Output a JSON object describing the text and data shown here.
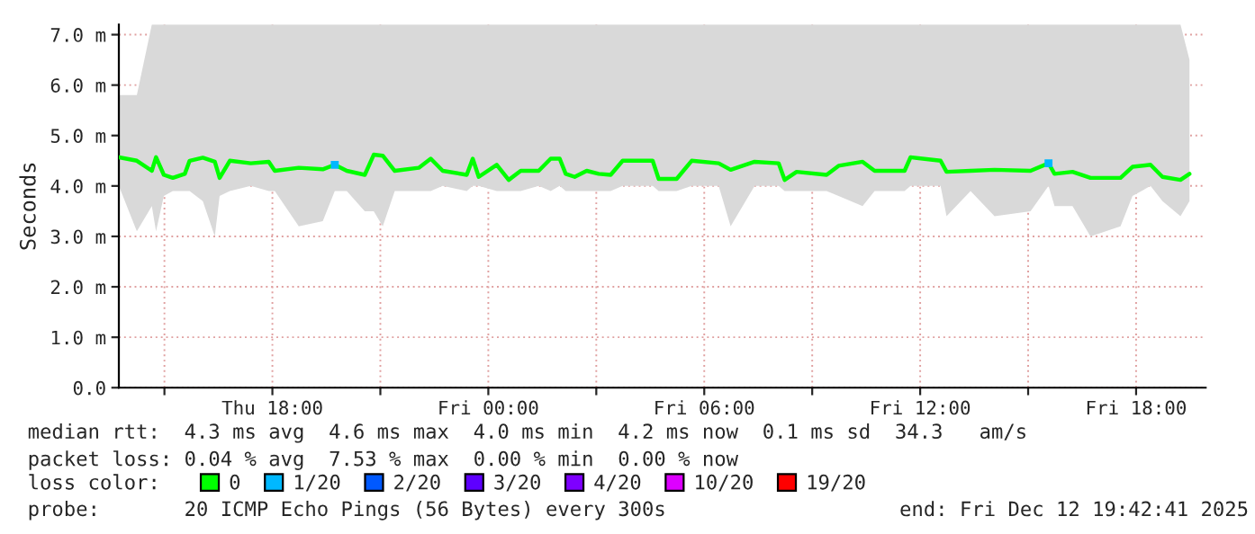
{
  "chart_data": {
    "type": "line",
    "ylabel": "Seconds",
    "legend_title": "loss color:",
    "x": [
      "2025-12-11T13:44",
      "2025-12-11T14:14",
      "2025-12-11T14:39",
      "2025-12-11T14:46",
      "2025-12-11T14:59",
      "2025-12-11T15:14",
      "2025-12-11T15:34",
      "2025-12-11T15:42",
      "2025-12-11T16:04",
      "2025-12-11T16:24",
      "2025-12-11T16:32",
      "2025-12-11T16:49",
      "2025-12-11T17:24",
      "2025-12-11T17:54",
      "2025-12-11T18:04",
      "2025-12-11T18:44",
      "2025-12-11T19:24",
      "2025-12-11T19:44",
      "2025-12-11T20:04",
      "2025-12-11T20:34",
      "2025-12-11T20:49",
      "2025-12-11T21:04",
      "2025-12-11T21:24",
      "2025-12-11T22:04",
      "2025-12-11T22:24",
      "2025-12-11T22:44",
      "2025-12-11T23:24",
      "2025-12-11T23:34",
      "2025-12-11T23:44",
      "2025-12-12T00:14",
      "2025-12-12T00:34",
      "2025-12-12T00:54",
      "2025-12-12T01:24",
      "2025-12-12T01:44",
      "2025-12-12T01:59",
      "2025-12-12T02:09",
      "2025-12-12T02:24",
      "2025-12-12T02:44",
      "2025-12-12T03:04",
      "2025-12-12T03:24",
      "2025-12-12T03:44",
      "2025-12-12T04:34",
      "2025-12-12T04:44",
      "2025-12-12T05:14",
      "2025-12-12T05:39",
      "2025-12-12T06:24",
      "2025-12-12T06:44",
      "2025-12-12T07:24",
      "2025-12-12T08:04",
      "2025-12-12T08:14",
      "2025-12-12T08:34",
      "2025-12-12T09:24",
      "2025-12-12T09:44",
      "2025-12-12T10:24",
      "2025-12-12T10:44",
      "2025-12-12T11:34",
      "2025-12-12T11:44",
      "2025-12-12T12:34",
      "2025-12-12T12:44",
      "2025-12-12T13:24",
      "2025-12-12T14:04",
      "2025-12-12T15:04",
      "2025-12-12T15:34",
      "2025-12-12T15:44",
      "2025-12-12T16:14",
      "2025-12-12T16:44",
      "2025-12-12T17:34",
      "2025-12-12T17:54",
      "2025-12-12T18:24",
      "2025-12-12T18:44",
      "2025-12-12T19:14",
      "2025-12-12T19:29"
    ],
    "series": [
      {
        "name": "0",
        "color": "#00ff00",
        "values": [
          4.57,
          4.5,
          4.3,
          4.57,
          4.22,
          4.16,
          4.24,
          4.5,
          4.56,
          4.48,
          4.16,
          4.5,
          4.45,
          4.48,
          4.3,
          4.36,
          4.33,
          4.42,
          4.3,
          4.22,
          4.62,
          4.6,
          4.3,
          4.36,
          4.54,
          4.3,
          4.22,
          4.54,
          4.18,
          4.42,
          4.12,
          4.3,
          4.3,
          4.54,
          4.54,
          4.24,
          4.18,
          4.3,
          4.24,
          4.22,
          4.5,
          4.5,
          4.14,
          4.14,
          4.5,
          4.45,
          4.32,
          4.48,
          4.45,
          4.12,
          4.28,
          4.22,
          4.4,
          4.48,
          4.3,
          4.3,
          4.57,
          4.5,
          4.28,
          4.3,
          4.32,
          4.3,
          4.45,
          4.24,
          4.28,
          4.16,
          4.16,
          4.38,
          4.42,
          4.18,
          4.12,
          4.24
        ],
        "lower": [
          4.0,
          3.1,
          3.6,
          3.1,
          3.8,
          3.9,
          3.9,
          3.9,
          3.7,
          3.0,
          3.8,
          3.9,
          4.0,
          3.9,
          3.9,
          3.2,
          3.3,
          3.9,
          3.9,
          3.5,
          3.5,
          3.2,
          3.9,
          3.9,
          3.9,
          4.0,
          3.9,
          4.0,
          4.0,
          3.9,
          3.9,
          3.9,
          4.0,
          3.9,
          4.0,
          3.9,
          3.9,
          3.9,
          3.9,
          3.9,
          4.0,
          4.0,
          3.9,
          3.9,
          4.0,
          4.0,
          3.2,
          4.0,
          4.0,
          3.9,
          3.9,
          3.9,
          3.8,
          3.6,
          3.9,
          3.9,
          4.0,
          4.0,
          3.4,
          3.9,
          3.4,
          3.5,
          4.0,
          3.6,
          3.6,
          3.0,
          3.2,
          3.8,
          4.0,
          3.7,
          3.4,
          3.7
        ],
        "upper": [
          5.8,
          5.8,
          7.2,
          7.2,
          7.2,
          7.2,
          7.2,
          7.2,
          7.2,
          7.2,
          7.2,
          7.2,
          7.2,
          7.2,
          7.2,
          7.2,
          7.2,
          7.2,
          7.2,
          7.2,
          7.2,
          7.2,
          7.2,
          7.2,
          7.2,
          7.2,
          7.2,
          7.2,
          7.2,
          7.2,
          7.2,
          7.2,
          7.2,
          7.2,
          7.2,
          7.2,
          7.2,
          7.2,
          7.2,
          7.2,
          7.2,
          7.2,
          7.2,
          7.2,
          7.2,
          7.2,
          7.2,
          7.2,
          7.2,
          7.2,
          7.2,
          7.2,
          7.2,
          7.2,
          7.2,
          7.2,
          7.2,
          7.2,
          7.2,
          7.2,
          7.2,
          7.2,
          7.2,
          7.2,
          7.2,
          7.2,
          7.2,
          7.2,
          7.2,
          7.2,
          7.2,
          6.5
        ]
      },
      {
        "name": "1/20",
        "color": "#00b8ff",
        "type": "scatter",
        "values": [
          null,
          null,
          null,
          null,
          null,
          null,
          null,
          null,
          null,
          null,
          null,
          null,
          null,
          null,
          null,
          null,
          null,
          4.42,
          null,
          null,
          null,
          null,
          null,
          null,
          null,
          null,
          null,
          null,
          null,
          null,
          null,
          null,
          null,
          null,
          null,
          null,
          null,
          null,
          null,
          null,
          null,
          null,
          null,
          null,
          null,
          null,
          null,
          null,
          null,
          null,
          null,
          null,
          null,
          null,
          null,
          null,
          null,
          null,
          null,
          null,
          null,
          null,
          4.45,
          null,
          null,
          null,
          null,
          null,
          null,
          null,
          null,
          null
        ]
      },
      {
        "name": "2/20",
        "color": "#0059ff",
        "values": [
          null,
          null,
          null,
          null,
          null,
          null,
          null,
          null,
          null,
          null,
          null,
          null,
          null,
          null,
          null,
          null,
          null,
          null,
          null,
          null,
          null,
          null,
          null,
          null,
          null,
          null,
          null,
          null,
          null,
          null,
          null,
          null,
          null,
          null,
          null,
          null,
          null,
          null,
          null,
          null,
          null,
          null,
          null,
          null,
          null,
          null,
          null,
          null,
          null,
          null,
          null,
          null,
          null,
          null,
          null,
          null,
          null,
          null,
          null,
          null,
          null,
          null,
          null,
          null,
          null,
          null,
          null,
          null,
          null,
          null,
          null,
          null
        ]
      },
      {
        "name": "3/20",
        "color": "#5e00ff",
        "values": [
          null,
          null,
          null,
          null,
          null,
          null,
          null,
          null,
          null,
          null,
          null,
          null,
          null,
          null,
          null,
          null,
          null,
          null,
          null,
          null,
          null,
          null,
          null,
          null,
          null,
          null,
          null,
          null,
          null,
          null,
          null,
          null,
          null,
          null,
          null,
          null,
          null,
          null,
          null,
          null,
          null,
          null,
          null,
          null,
          null,
          null,
          null,
          null,
          null,
          null,
          null,
          null,
          null,
          null,
          null,
          null,
          null,
          null,
          null,
          null,
          null,
          null,
          null,
          null,
          null,
          null,
          null,
          null,
          null,
          null,
          null,
          null
        ]
      },
      {
        "name": "4/20",
        "color": "#7e00ff",
        "values": [
          null,
          null,
          null,
          null,
          null,
          null,
          null,
          null,
          null,
          null,
          null,
          null,
          null,
          null,
          null,
          null,
          null,
          null,
          null,
          null,
          null,
          null,
          null,
          null,
          null,
          null,
          null,
          null,
          null,
          null,
          null,
          null,
          null,
          null,
          null,
          null,
          null,
          null,
          null,
          null,
          null,
          null,
          null,
          null,
          null,
          null,
          null,
          null,
          null,
          null,
          null,
          null,
          null,
          null,
          null,
          null,
          null,
          null,
          null,
          null,
          null,
          null,
          null,
          null,
          null,
          null,
          null,
          null,
          null,
          null,
          null,
          null
        ]
      },
      {
        "name": "10/20",
        "color": "#dd00ff",
        "values": [
          null,
          null,
          null,
          null,
          null,
          null,
          null,
          null,
          null,
          null,
          null,
          null,
          null,
          null,
          null,
          null,
          null,
          null,
          null,
          null,
          null,
          null,
          null,
          null,
          null,
          null,
          null,
          null,
          null,
          null,
          null,
          null,
          null,
          null,
          null,
          null,
          null,
          null,
          null,
          null,
          null,
          null,
          null,
          null,
          null,
          null,
          null,
          null,
          null,
          null,
          null,
          null,
          null,
          null,
          null,
          null,
          null,
          null,
          null,
          null,
          null,
          null,
          null,
          null,
          null,
          null,
          null,
          null,
          null,
          null,
          null,
          null
        ]
      },
      {
        "name": "19/20",
        "color": "#ff0000",
        "values": [
          null,
          null,
          null,
          null,
          null,
          null,
          null,
          null,
          null,
          null,
          null,
          null,
          null,
          null,
          null,
          null,
          null,
          null,
          null,
          null,
          null,
          null,
          null,
          null,
          null,
          null,
          null,
          null,
          null,
          null,
          null,
          null,
          null,
          null,
          null,
          null,
          null,
          null,
          null,
          null,
          null,
          null,
          null,
          null,
          null,
          null,
          null,
          null,
          null,
          null,
          null,
          null,
          null,
          null,
          null,
          null,
          null,
          null,
          null,
          null,
          null,
          null,
          null,
          null,
          null,
          null,
          null,
          null,
          null,
          null,
          null,
          null
        ]
      }
    ],
    "xlim": [
      "2025-12-11T13:44",
      "2025-12-12T19:56"
    ],
    "xticks": [
      {
        "value": "2025-12-11T15:00",
        "label": null
      },
      {
        "value": "2025-12-11T18:00",
        "label": "Thu 18:00"
      },
      {
        "value": "2025-12-11T21:00",
        "label": null
      },
      {
        "value": "2025-12-12T00:00",
        "label": "Fri 00:00"
      },
      {
        "value": "2025-12-12T03:00",
        "label": null
      },
      {
        "value": "2025-12-12T06:00",
        "label": "Fri 06:00"
      },
      {
        "value": "2025-12-12T09:00",
        "label": null
      },
      {
        "value": "2025-12-12T12:00",
        "label": "Fri 12:00"
      },
      {
        "value": "2025-12-12T15:00",
        "label": null
      },
      {
        "value": "2025-12-12T18:00",
        "label": "Fri 18:00"
      }
    ],
    "ylim": [
      0,
      7.2
    ],
    "yticks": [
      {
        "value": 0,
        "label": "0.0"
      },
      {
        "value": 1,
        "label": "1.0 m"
      },
      {
        "value": 2,
        "label": "2.0 m"
      },
      {
        "value": 3,
        "label": "3.0 m"
      },
      {
        "value": 4,
        "label": "4.0 m"
      },
      {
        "value": 5,
        "label": "5.0 m"
      },
      {
        "value": 6,
        "label": "6.0 m"
      },
      {
        "value": 7,
        "label": "7.0 m"
      }
    ],
    "grid": true,
    "legend": "bottom",
    "annotations": [
      "median rtt:  4.3 ms avg  4.6 ms max  4.0 ms min  4.2 ms now  0.1 ms sd  34.3   am/s",
      "packet loss: 0.04 % avg  7.53 % max  0.00 % min  0.00 % now",
      "probe:       20 ICMP Echo Pings (56 Bytes) every 300s",
      "end: Fri Dec 12 19:42:41 2025"
    ]
  }
}
